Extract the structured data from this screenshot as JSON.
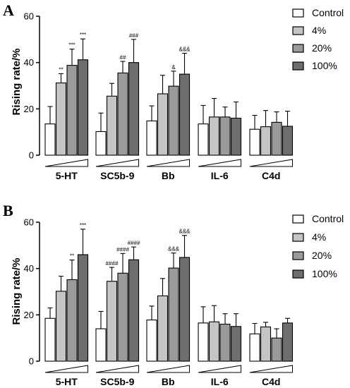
{
  "series_styles": {
    "colors": [
      "#ffffff",
      "#c4c4c4",
      "#9a9a9a",
      "#6e6e6e"
    ]
  },
  "chart_data": [
    {
      "panel": "A",
      "type": "bar",
      "ylabel": "Rising rate/%",
      "ylim": [
        0,
        60
      ],
      "yticks": [
        0,
        20,
        40,
        60
      ],
      "categories": [
        "5-HT",
        "SC5b-9",
        "Bb",
        "IL-6",
        "C4d"
      ],
      "legend_position": "top-right",
      "series": [
        {
          "name": "Control",
          "values": [
            13.5,
            10.2,
            14.8,
            13.5,
            11.2
          ],
          "errors": [
            7.5,
            8.0,
            6.5,
            8.0,
            6.0
          ]
        },
        {
          "name": "4%",
          "values": [
            31.2,
            25.5,
            26.5,
            16.5,
            12.3
          ],
          "errors": [
            4.0,
            5.5,
            8.0,
            8.0,
            7.0
          ]
        },
        {
          "name": "20%",
          "values": [
            38.8,
            35.5,
            29.8,
            16.5,
            14.2
          ],
          "errors": [
            7.0,
            5.0,
            6.5,
            4.3,
            4.5
          ]
        },
        {
          "name": "100%",
          "values": [
            41.2,
            40.0,
            35.0,
            16.0,
            12.5
          ],
          "errors": [
            9.0,
            10.0,
            9.0,
            7.0,
            6.5
          ]
        }
      ],
      "annotations": [
        [
          [
            "",
            "**",
            "***",
            "***"
          ],
          [
            "",
            "",
            "##",
            "###"
          ],
          [
            "",
            "",
            "&",
            "&&&"
          ],
          [
            "",
            "",
            "",
            ""
          ],
          [
            "",
            "",
            "",
            ""
          ]
        ]
      ]
    },
    {
      "panel": "B",
      "type": "bar",
      "ylabel": "Rising rate/%",
      "ylim": [
        0,
        60
      ],
      "yticks": [
        0,
        20,
        40,
        60
      ],
      "categories": [
        "5-HT",
        "SC5b-9",
        "Bb",
        "IL-6",
        "C4d"
      ],
      "legend_position": "top-right",
      "series": [
        {
          "name": "Control",
          "values": [
            18.5,
            14.0,
            17.8,
            16.5,
            11.8
          ],
          "errors": [
            4.5,
            7.5,
            6.0,
            7.0,
            4.5
          ]
        },
        {
          "name": "4%",
          "values": [
            30.2,
            34.5,
            28.2,
            17.0,
            14.8
          ],
          "errors": [
            6.5,
            6.0,
            7.5,
            7.0,
            2.0
          ]
        },
        {
          "name": "20%",
          "values": [
            35.2,
            38.0,
            40.2,
            16.0,
            10.0
          ],
          "errors": [
            8.5,
            8.5,
            6.5,
            4.5,
            4.0
          ]
        },
        {
          "name": "100%",
          "values": [
            46.0,
            43.8,
            44.8,
            15.0,
            16.5
          ],
          "errors": [
            11.0,
            5.5,
            9.5,
            5.5,
            2.0
          ]
        }
      ],
      "annotations": [
        [
          [
            "",
            "",
            "**",
            "***"
          ],
          [
            "",
            "####",
            "####",
            "####"
          ],
          [
            "",
            "",
            "&&&",
            "&&&"
          ],
          [
            "",
            "",
            "",
            ""
          ],
          [
            "",
            "",
            "",
            ""
          ]
        ]
      ]
    }
  ]
}
